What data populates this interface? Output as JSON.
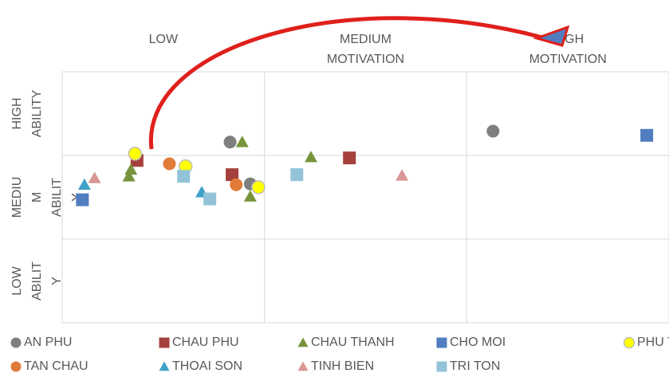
{
  "chart_data": {
    "type": "scatter",
    "column_labels": [
      [
        "LOW"
      ],
      [
        "MEDIUM",
        "MOTIVATION"
      ],
      [
        "HIGH",
        "MOTIVATION"
      ]
    ],
    "row_labels": [
      [
        "HIGH",
        "ABILITY"
      ],
      [
        "MEDIU",
        "M",
        "ABILIT",
        "Y"
      ],
      [
        "LOW",
        "ABILIT",
        "Y"
      ]
    ],
    "xlim": [
      0,
      3
    ],
    "ylim": [
      0,
      3
    ],
    "xticks": [
      0,
      1,
      2,
      3
    ],
    "yticks": [
      0,
      1,
      2,
      3
    ],
    "grid": true,
    "series": [
      {
        "name": "AN PHU",
        "color": "#7f7f7f",
        "marker": "circle",
        "x": [
          0.83,
          0.93,
          2.13
        ],
        "values": [
          2.16,
          1.66,
          2.29
        ]
      },
      {
        "name": "CHAU PHU",
        "color": "#a5403d",
        "marker": "square",
        "x": [
          0.37,
          0.84,
          1.42
        ],
        "values": [
          1.94,
          1.77,
          1.97
        ]
      },
      {
        "name": "CHAU THANH",
        "color": "#77933c",
        "marker": "triangle",
        "x": [
          0.33,
          0.34,
          0.89,
          0.93,
          1.23
        ],
        "values": [
          1.75,
          1.83,
          2.16,
          1.51,
          1.98
        ]
      },
      {
        "name": "CHO MOI",
        "color": "#4f7dc0",
        "marker": "square",
        "x": [
          0.1,
          2.89
        ],
        "values": [
          1.47,
          2.24
        ]
      },
      {
        "name": "PHU TAN",
        "color": "#ffff00",
        "marker": "circle-outline",
        "x": [
          0.36,
          0.61,
          0.97
        ],
        "values": [
          2.02,
          1.87,
          1.62
        ]
      },
      {
        "name": "TAN CHAU",
        "color": "#e07b39",
        "marker": "circle",
        "x": [
          0.53,
          0.86
        ],
        "values": [
          1.9,
          1.65
        ]
      },
      {
        "name": "THOAI SON",
        "color": "#3fa2c8",
        "marker": "triangle",
        "x": [
          0.11,
          0.69
        ],
        "values": [
          1.65,
          1.56
        ]
      },
      {
        "name": "TINH BIEN",
        "color": "#d99694",
        "marker": "triangle",
        "x": [
          0.16,
          1.68
        ],
        "values": [
          1.73,
          1.76
        ]
      },
      {
        "name": "TRI TON",
        "color": "#93c3d8",
        "marker": "square",
        "x": [
          0.6,
          0.73,
          1.16
        ],
        "values": [
          1.75,
          1.48,
          1.77
        ]
      }
    ]
  }
}
